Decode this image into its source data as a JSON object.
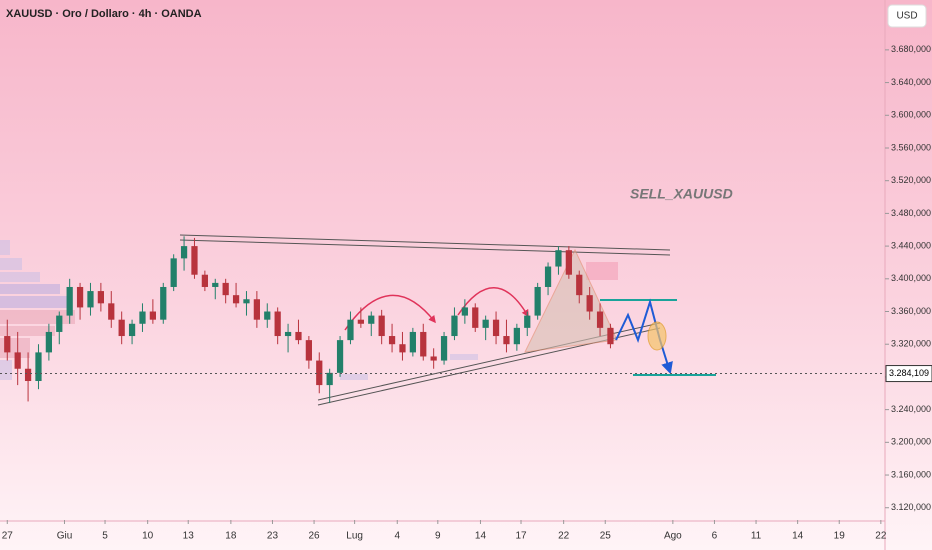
{
  "header": {
    "symbol": "XAUUSD · Oro / Dollaro · 4h · OANDA",
    "currency": "USD"
  },
  "chart_data": {
    "type": "candlestick",
    "annotation": "SELL_XAUUSD",
    "up_color": "#22806a",
    "down_color": "#b8333d",
    "ylim": [
      3105,
      3741
    ],
    "yticks": [
      {
        "value": 3120,
        "label": "3.120,000"
      },
      {
        "value": 3160,
        "label": "3.160,000"
      },
      {
        "value": 3200,
        "label": "3.200,000"
      },
      {
        "value": 3240,
        "label": "3.240,000"
      },
      {
        "value": 3280,
        "label": "3.280,000"
      },
      {
        "value": 3320,
        "label": "3.320,000"
      },
      {
        "value": 3360,
        "label": "3.360,000"
      },
      {
        "value": 3400,
        "label": "3.400,000"
      },
      {
        "value": 3440,
        "label": "3.440,000"
      },
      {
        "value": 3480,
        "label": "3.480,000"
      },
      {
        "value": 3520,
        "label": "3.520,000"
      },
      {
        "value": 3560,
        "label": "3.560,000"
      },
      {
        "value": 3600,
        "label": "3.600,000"
      },
      {
        "value": 3640,
        "label": "3.640,000"
      },
      {
        "value": 3680,
        "label": "3.680,000"
      }
    ],
    "last_price": {
      "value": 3284.109,
      "label": "3.284,109"
    },
    "xlim": [
      -0.7,
      84.4
    ],
    "xticks": [
      {
        "value": 0,
        "label": "27"
      },
      {
        "value": 5.5,
        "label": "Giu"
      },
      {
        "value": 9.4,
        "label": "5"
      },
      {
        "value": 13.5,
        "label": "10"
      },
      {
        "value": 17.4,
        "label": "13"
      },
      {
        "value": 21.5,
        "label": "18"
      },
      {
        "value": 25.5,
        "label": "23"
      },
      {
        "value": 29.5,
        "label": "26"
      },
      {
        "value": 33.4,
        "label": "Lug"
      },
      {
        "value": 37.5,
        "label": "4"
      },
      {
        "value": 41.4,
        "label": "9"
      },
      {
        "value": 45.5,
        "label": "14"
      },
      {
        "value": 49.4,
        "label": "17"
      },
      {
        "value": 53.5,
        "label": "22"
      },
      {
        "value": 57.5,
        "label": "25"
      },
      {
        "value": 64,
        "label": "Ago"
      },
      {
        "value": 68,
        "label": "6"
      },
      {
        "value": 72,
        "label": "11"
      },
      {
        "value": 76,
        "label": "14"
      },
      {
        "value": 80,
        "label": "19"
      },
      {
        "value": 84,
        "label": "22"
      }
    ],
    "x": [
      0,
      1,
      2,
      3,
      4,
      5,
      6,
      7,
      8,
      9,
      10,
      11,
      12,
      13,
      14,
      15,
      16,
      17,
      18,
      19,
      20,
      21,
      22,
      23,
      24,
      25,
      26,
      27,
      28,
      29,
      30,
      31,
      32,
      33,
      34,
      35,
      36,
      37,
      38,
      39,
      40,
      41,
      42,
      43,
      44,
      45,
      46,
      47,
      48,
      49,
      50,
      51,
      52,
      53,
      54,
      55,
      56,
      57,
      58
    ],
    "open": [
      3330,
      3310,
      3290,
      3275,
      3310,
      3335,
      3355,
      3390,
      3365,
      3385,
      3370,
      3350,
      3330,
      3345,
      3360,
      3350,
      3390,
      3425,
      3440,
      3405,
      3390,
      3395,
      3380,
      3370,
      3375,
      3350,
      3360,
      3330,
      3335,
      3325,
      3300,
      3270,
      3285,
      3325,
      3350,
      3345,
      3355,
      3330,
      3320,
      3310,
      3335,
      3305,
      3300,
      3330,
      3355,
      3365,
      3340,
      3350,
      3330,
      3320,
      3340,
      3355,
      3390,
      3415,
      3435,
      3405,
      3380,
      3360,
      3340
    ],
    "high": [
      3350,
      3335,
      3310,
      3320,
      3345,
      3360,
      3400,
      3395,
      3395,
      3395,
      3385,
      3360,
      3350,
      3370,
      3375,
      3395,
      3430,
      3452,
      3450,
      3410,
      3400,
      3400,
      3395,
      3385,
      3385,
      3370,
      3365,
      3345,
      3350,
      3330,
      3310,
      3290,
      3330,
      3360,
      3365,
      3360,
      3362,
      3345,
      3335,
      3340,
      3345,
      3315,
      3335,
      3365,
      3375,
      3370,
      3355,
      3360,
      3350,
      3345,
      3360,
      3395,
      3420,
      3440,
      3440,
      3410,
      3390,
      3370,
      3345
    ],
    "low": [
      3300,
      3270,
      3250,
      3265,
      3300,
      3320,
      3345,
      3350,
      3355,
      3360,
      3340,
      3320,
      3320,
      3335,
      3345,
      3345,
      3385,
      3410,
      3400,
      3385,
      3375,
      3370,
      3365,
      3355,
      3340,
      3340,
      3320,
      3310,
      3320,
      3290,
      3260,
      3248,
      3280,
      3320,
      3340,
      3330,
      3320,
      3310,
      3300,
      3305,
      3300,
      3290,
      3295,
      3325,
      3345,
      3335,
      3325,
      3320,
      3310,
      3312,
      3330,
      3350,
      3380,
      3405,
      3400,
      3370,
      3350,
      3330,
      3315
    ],
    "close": [
      3310,
      3290,
      3275,
      3310,
      3335,
      3355,
      3390,
      3365,
      3385,
      3370,
      3350,
      3330,
      3345,
      3360,
      3350,
      3390,
      3425,
      3440,
      3405,
      3390,
      3395,
      3380,
      3370,
      3375,
      3350,
      3360,
      3330,
      3335,
      3325,
      3300,
      3270,
      3285,
      3325,
      3350,
      3345,
      3355,
      3330,
      3320,
      3310,
      3335,
      3305,
      3300,
      3330,
      3355,
      3365,
      3340,
      3350,
      3330,
      3320,
      3340,
      3355,
      3390,
      3415,
      3435,
      3405,
      3380,
      3360,
      3340,
      3320
    ]
  }
}
